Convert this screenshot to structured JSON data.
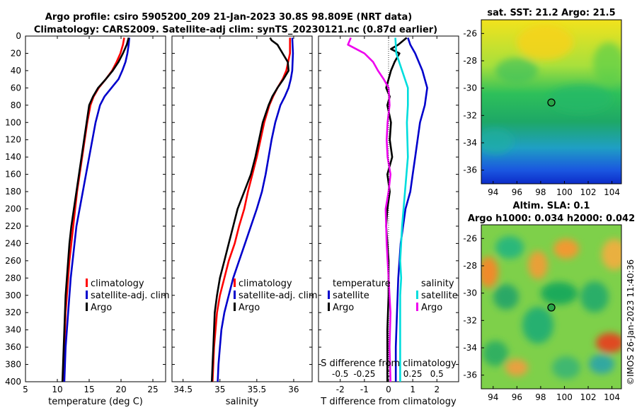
{
  "title": {
    "line1": "Argo profile: csiro 5905200_209 21-Jan-2023 30.8S 98.809E (NRT data)",
    "line2": "Climatology: CARS2009. Satellite-adj clim: synTS_20230121.nc (0.87d earlier)"
  },
  "colors": {
    "clim": "#ff0000",
    "sat": "#0000cc",
    "argo": "#000000",
    "sat_s": "#00dddd",
    "argo_s": "#ee00ee"
  },
  "chart_data": [
    {
      "type": "line",
      "name": "temperature",
      "xlabel": "temperature (deg C)",
      "xlim": [
        5,
        27
      ],
      "xticks": [
        5,
        10,
        15,
        20,
        25
      ],
      "ylim": [
        0,
        400
      ],
      "yticks": [
        0,
        20,
        40,
        60,
        80,
        100,
        120,
        140,
        160,
        180,
        200,
        220,
        240,
        260,
        280,
        300,
        320,
        340,
        360,
        380,
        400
      ],
      "legend": [
        "climatology",
        "satellite-adj. clim",
        "Argo"
      ],
      "series": [
        {
          "name": "climatology",
          "depth": [
            2,
            10,
            20,
            30,
            40,
            50,
            60,
            70,
            80,
            100,
            120,
            140,
            160,
            180,
            200,
            220,
            240,
            260,
            280,
            300,
            320,
            340,
            360,
            380,
            400
          ],
          "values": [
            20.5,
            20.3,
            19.9,
            19.3,
            18.6,
            17.6,
            16.5,
            15.7,
            15.2,
            14.7,
            14.3,
            13.9,
            13.5,
            13.1,
            12.8,
            12.5,
            12.2,
            11.9,
            11.7,
            11.5,
            11.3,
            11.2,
            11.1,
            11.0,
            10.9
          ]
        },
        {
          "name": "satellite-adj. clim",
          "depth": [
            2,
            10,
            20,
            30,
            40,
            50,
            60,
            70,
            80,
            100,
            120,
            140,
            160,
            180,
            200,
            220,
            240,
            260,
            280,
            300,
            320,
            340,
            360,
            380,
            400
          ],
          "values": [
            21.3,
            21.2,
            21.0,
            20.7,
            20.2,
            19.6,
            18.5,
            17.4,
            16.7,
            16.0,
            15.5,
            15.0,
            14.5,
            14.0,
            13.5,
            13.0,
            12.7,
            12.4,
            12.1,
            11.9,
            11.7,
            11.5,
            11.3,
            11.2,
            11.1
          ]
        },
        {
          "name": "Argo",
          "depth": [
            2,
            10,
            20,
            30,
            40,
            50,
            60,
            70,
            80,
            100,
            120,
            140,
            160,
            180,
            200,
            220,
            240,
            260,
            280,
            300,
            320,
            340,
            360,
            380,
            400
          ],
          "values": [
            21.2,
            20.9,
            20.3,
            19.6,
            18.7,
            17.6,
            16.4,
            15.6,
            15.0,
            14.6,
            14.2,
            13.8,
            13.4,
            13.0,
            12.6,
            12.2,
            11.9,
            11.7,
            11.5,
            11.3,
            11.2,
            11.1,
            11.0,
            10.9,
            10.8
          ]
        }
      ]
    },
    {
      "type": "line",
      "name": "salinity",
      "xlabel": "salinity",
      "xlim": [
        34.35,
        36.25
      ],
      "xticks": [
        "34.5",
        "35",
        "35.5",
        "36"
      ],
      "ylim": [
        0,
        400
      ],
      "legend": [
        "climatology",
        "satellite-adj. clim",
        "Argo"
      ],
      "series": [
        {
          "name": "climatology",
          "depth": [
            2,
            20,
            40,
            50,
            60,
            70,
            80,
            100,
            120,
            140,
            160,
            180,
            200,
            220,
            240,
            260,
            280,
            300,
            320,
            340,
            360,
            380,
            400
          ],
          "values": [
            35.95,
            35.95,
            35.9,
            35.85,
            35.78,
            35.72,
            35.67,
            35.6,
            35.55,
            35.5,
            35.44,
            35.38,
            35.33,
            35.26,
            35.2,
            35.12,
            35.06,
            35.0,
            34.96,
            34.94,
            34.92,
            34.91,
            34.9
          ]
        },
        {
          "name": "satellite-adj. clim",
          "depth": [
            2,
            20,
            40,
            50,
            60,
            70,
            80,
            100,
            120,
            140,
            160,
            180,
            200,
            220,
            240,
            260,
            280,
            300,
            320,
            340,
            360,
            380,
            400
          ],
          "values": [
            35.98,
            35.99,
            35.98,
            35.96,
            35.93,
            35.88,
            35.82,
            35.75,
            35.7,
            35.66,
            35.62,
            35.57,
            35.5,
            35.42,
            35.34,
            35.26,
            35.18,
            35.12,
            35.06,
            35.02,
            35.0,
            34.98,
            34.97
          ]
        },
        {
          "name": "Argo",
          "depth": [
            2,
            5,
            10,
            20,
            30,
            40,
            50,
            60,
            70,
            80,
            100,
            120,
            140,
            160,
            180,
            200,
            220,
            240,
            260,
            280,
            300,
            320,
            340,
            360,
            380,
            400
          ],
          "values": [
            35.68,
            35.7,
            35.78,
            35.85,
            35.92,
            35.93,
            35.86,
            35.78,
            35.71,
            35.66,
            35.58,
            35.53,
            35.48,
            35.42,
            35.33,
            35.24,
            35.18,
            35.12,
            35.06,
            35.0,
            34.96,
            34.93,
            34.92,
            34.91,
            34.9,
            34.89
          ]
        }
      ]
    },
    {
      "type": "line",
      "name": "difference from climatology",
      "xlabel": "T difference from climatology",
      "xlim": [
        -2.9,
        2.9
      ],
      "xticks": [
        "-2",
        "-1",
        "0",
        "1",
        "2"
      ],
      "top_xlabel": "S difference from climatology",
      "top_xticks": [
        "-0.5",
        "-0.25",
        "0",
        "0.25",
        "0.5"
      ],
      "ylim": [
        0,
        400
      ],
      "legend": [
        "temperature",
        "satellite",
        "Argo",
        "salinity",
        "satellite",
        "Argo"
      ],
      "series": [
        {
          "name": "temperature satellite",
          "depth": [
            2,
            10,
            20,
            40,
            60,
            80,
            100,
            120,
            140,
            160,
            180,
            200,
            240,
            280,
            320,
            360,
            400
          ],
          "values": [
            0.8,
            0.9,
            1.1,
            1.4,
            1.6,
            1.5,
            1.3,
            1.2,
            1.1,
            1.0,
            0.9,
            0.7,
            0.5,
            0.4,
            0.35,
            0.3,
            0.3
          ]
        },
        {
          "name": "temperature Argo",
          "depth": [
            2,
            10,
            15,
            20,
            30,
            40,
            50,
            60,
            70,
            80,
            100,
            120,
            140,
            160,
            180,
            200,
            220,
            260,
            300,
            340,
            400
          ],
          "values": [
            0.75,
            0.4,
            0.1,
            0.45,
            0.25,
            0.1,
            0.0,
            -0.1,
            0.05,
            -0.05,
            0.1,
            0.05,
            0.15,
            -0.05,
            0.05,
            -0.05,
            -0.1,
            0.0,
            0.0,
            -0.05,
            -0.05
          ]
        },
        {
          "name": "salinity satellite",
          "depth": [
            2,
            20,
            40,
            60,
            80,
            100,
            140,
            180,
            220,
            260,
            280,
            300,
            340,
            400
          ],
          "values": [
            0.07,
            0.08,
            0.14,
            0.2,
            0.2,
            0.19,
            0.2,
            0.17,
            0.14,
            0.12,
            0.13,
            0.12,
            0.12,
            0.12
          ]
        },
        {
          "name": "salinity Argo",
          "depth": [
            2,
            10,
            20,
            30,
            40,
            50,
            60,
            80,
            100,
            120,
            140,
            160,
            180,
            200,
            240,
            280,
            320,
            360,
            400
          ],
          "values": [
            -0.39,
            -0.42,
            -0.25,
            -0.16,
            -0.11,
            -0.05,
            0.0,
            0.01,
            -0.01,
            -0.02,
            -0.01,
            0.02,
            0.0,
            -0.03,
            -0.02,
            0.0,
            0.02,
            0.01,
            0.02
          ]
        }
      ]
    },
    {
      "type": "heatmap",
      "name": "satellite SST",
      "title": "sat. SST: 21.2 Argo: 21.5",
      "xlim": [
        93,
        104.8
      ],
      "ylim": [
        -37,
        -25
      ],
      "xticks": [
        "94",
        "96",
        "98",
        "100",
        "102",
        "104"
      ],
      "yticks": [
        "-26",
        "-28",
        "-30",
        "-32",
        "-34",
        "-36"
      ],
      "marker": {
        "lon": 98.809,
        "lat": -30.8
      }
    },
    {
      "type": "heatmap",
      "name": "altimetry SLA",
      "title1": "Altim. SLA: 0.1",
      "title2": "Argo h1000: 0.034 h2000: 0.042",
      "xlim": [
        93,
        104.8
      ],
      "ylim": [
        -37,
        -25
      ],
      "xticks": [
        "94",
        "96",
        "98",
        "100",
        "102",
        "104"
      ],
      "yticks": [
        "-26",
        "-28",
        "-30",
        "-32",
        "-34",
        "-36"
      ],
      "marker": {
        "lon": 98.809,
        "lat": -30.8
      }
    }
  ],
  "credit": "©IMOS 26-Jan-2023 11:40:36"
}
